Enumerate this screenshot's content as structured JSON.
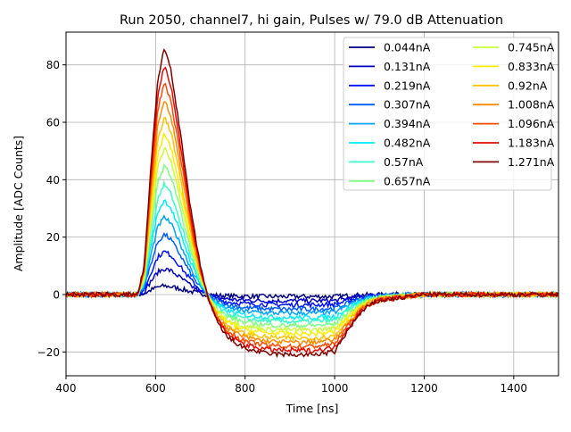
{
  "chart_data": {
    "type": "line",
    "title": "Run 2050, channel7, hi gain, Pulses w/ 79.0 dB Attenuation",
    "xlabel": "Time [ns]",
    "ylabel": "Amplitude [ADC Counts]",
    "xlim": [
      400,
      1500
    ],
    "ylim": [
      -28.3,
      91.4
    ],
    "xticks": [
      400,
      600,
      800,
      1000,
      1200,
      1400
    ],
    "xtick_labels": [
      "400",
      "600",
      "800",
      "1000",
      "1200",
      "1400"
    ],
    "yticks": [
      -20,
      0,
      20,
      40,
      60,
      80
    ],
    "ytick_labels": [
      "−20",
      "0",
      "20",
      "40",
      "60",
      "80"
    ],
    "grid": true,
    "legend_placement": "top-right",
    "legend_columns": 2,
    "colormap": "jet",
    "x": [
      400,
      560,
      575,
      590,
      605,
      620,
      635,
      650,
      665,
      680,
      700,
      720,
      740,
      760,
      800,
      850,
      900,
      950,
      1000,
      1020,
      1040,
      1060,
      1080,
      1100,
      1150,
      1200,
      1500
    ],
    "series": [
      {
        "name": "0.044nA",
        "color": "#000080",
        "values": [
          0,
          0,
          0.3,
          1.6,
          2.6,
          3,
          2.7,
          2.2,
          1.6,
          1.0,
          0.3,
          -0.1,
          -0.3,
          -0.5,
          -0.6,
          -0.7,
          -0.7,
          -0.7,
          -0.7,
          -0.5,
          -0.3,
          -0.2,
          -0.1,
          -0.1,
          0,
          0,
          0
        ]
      },
      {
        "name": "0.131nA",
        "color": "#0000c8",
        "values": [
          0,
          0,
          1.0,
          4.7,
          7.8,
          9,
          8.2,
          6.5,
          4.7,
          2.9,
          1.0,
          -0.3,
          -1.1,
          -1.6,
          -2.0,
          -2.2,
          -2.2,
          -2.2,
          -2.1,
          -1.6,
          -1.1,
          -0.6,
          -0.4,
          -0.2,
          -0.1,
          0,
          0
        ]
      },
      {
        "name": "0.219nA",
        "color": "#0012ff",
        "values": [
          0,
          0,
          1.7,
          7.8,
          13.1,
          15,
          13.6,
          10.8,
          7.8,
          4.9,
          1.7,
          -0.5,
          -1.7,
          -2.6,
          -3.2,
          -3.5,
          -3.6,
          -3.6,
          -3.4,
          -2.6,
          -1.7,
          -1.0,
          -0.6,
          -0.4,
          -0.2,
          0,
          0
        ]
      },
      {
        "name": "0.307nA",
        "color": "#005cff",
        "values": [
          0,
          0,
          2.4,
          11.0,
          18.3,
          21,
          19.0,
          15.1,
          11.0,
          6.8,
          2.4,
          -0.7,
          -2.4,
          -3.6,
          -4.6,
          -5.0,
          -5.1,
          -5.1,
          -4.8,
          -3.6,
          -2.4,
          -1.5,
          -0.9,
          -0.5,
          -0.3,
          0,
          0
        ]
      },
      {
        "name": "0.394nA",
        "color": "#00a4ff",
        "values": [
          0,
          0,
          3.1,
          14.1,
          23.5,
          27,
          24.5,
          19.5,
          14.1,
          8.8,
          3.1,
          -0.9,
          -3.1,
          -4.6,
          -5.9,
          -6.4,
          -6.5,
          -6.5,
          -6.2,
          -4.6,
          -3.1,
          -1.9,
          -1.1,
          -0.7,
          -0.3,
          0,
          0
        ]
      },
      {
        "name": "0.482nA",
        "color": "#00edff",
        "values": [
          0,
          0,
          3.8,
          17.3,
          28.8,
          33,
          29.9,
          23.8,
          17.3,
          10.8,
          3.8,
          -1.1,
          -3.8,
          -5.7,
          -7.2,
          -7.8,
          -8,
          -8,
          -7.6,
          -5.7,
          -3.8,
          -2.3,
          -1.4,
          -0.8,
          -0.4,
          0,
          0
        ]
      },
      {
        "name": "0.57nA",
        "color": "#36ffc8",
        "values": [
          0,
          0,
          4.5,
          20.1,
          33.6,
          38.5,
          34.9,
          27.8,
          20.1,
          12.6,
          4.5,
          -1.3,
          -4.5,
          -6.7,
          -8.5,
          -9.2,
          -9.4,
          -9.4,
          -8.9,
          -6.7,
          -4.5,
          -2.7,
          -1.6,
          -0.9,
          -0.5,
          0,
          0
        ]
      },
      {
        "name": "0.657nA",
        "color": "#80ff80",
        "values": [
          0,
          0,
          5.2,
          23.5,
          39.2,
          45,
          40.8,
          32.4,
          23.5,
          14.7,
          5.2,
          -1.5,
          -5.2,
          -7.7,
          -9.7,
          -10.6,
          -10.8,
          -10.8,
          -10.3,
          -7.7,
          -5.2,
          -3.1,
          -1.8,
          -1.1,
          -0.5,
          0,
          0
        ]
      },
      {
        "name": "0.745nA",
        "color": "#c8ff36",
        "values": [
          0,
          0,
          5.9,
          26.7,
          44.5,
          51,
          46.3,
          36.8,
          26.7,
          16.6,
          5.9,
          -1.7,
          -5.9,
          -8.7,
          -11.1,
          -12.1,
          -12.3,
          -12.3,
          -11.7,
          -8.7,
          -5.9,
          -3.6,
          -2.1,
          -1.2,
          -0.6,
          0,
          0
        ]
      },
      {
        "name": "0.833nA",
        "color": "#ffed00",
        "values": [
          0,
          0,
          6.5,
          29.3,
          48.8,
          56,
          50.8,
          40.4,
          29.3,
          18.3,
          6.5,
          -1.9,
          -6.6,
          -9.7,
          -12.3,
          -13.4,
          -13.7,
          -13.7,
          -13.0,
          -9.7,
          -6.6,
          -4.0,
          -2.3,
          -1.4,
          -0.7,
          0,
          0
        ]
      },
      {
        "name": "0.92nA",
        "color": "#ffc400",
        "values": [
          0,
          0,
          7.2,
          32.4,
          54.1,
          62,
          56.2,
          44.7,
          32.4,
          20.2,
          7.2,
          -2.1,
          -7.3,
          -10.8,
          -13.7,
          -14.9,
          -15.2,
          -15.2,
          -14.4,
          -10.8,
          -7.3,
          -4.4,
          -2.6,
          -1.5,
          -0.8,
          0,
          0
        ]
      },
      {
        "name": "1.008nA",
        "color": "#ff8c00",
        "values": [
          0,
          0,
          7.9,
          35.6,
          59.3,
          68,
          61.7,
          49.0,
          35.6,
          22.2,
          7.9,
          -2.3,
          -8.0,
          -11.8,
          -14.9,
          -16.3,
          -16.6,
          -16.6,
          -15.8,
          -11.8,
          -8.0,
          -4.8,
          -2.8,
          -1.7,
          -0.8,
          0,
          0
        ]
      },
      {
        "name": "1.096nA",
        "color": "#ff4a00",
        "values": [
          0,
          0,
          8.6,
          38.7,
          64.5,
          74,
          67.1,
          53.4,
          38.7,
          24.1,
          8.6,
          -2.5,
          -8.7,
          -12.9,
          -16.3,
          -17.7,
          -18.1,
          -18.1,
          -17.2,
          -12.9,
          -8.7,
          -5.2,
          -3.1,
          -1.8,
          -0.9,
          0,
          0
        ]
      },
      {
        "name": "1.183nA",
        "color": "#e80800",
        "values": [
          0,
          0,
          9.3,
          41.8,
          69.8,
          80,
          72.6,
          57.7,
          41.8,
          26.1,
          9.3,
          -2.7,
          -9.4,
          -13.8,
          -17.6,
          -19.1,
          -19.5,
          -19.5,
          -18.5,
          -13.8,
          -9.4,
          -5.7,
          -3.3,
          -2.0,
          -1.0,
          0,
          0
        ]
      },
      {
        "name": "1.271nA",
        "color": "#800000",
        "values": [
          0,
          0,
          10,
          45,
          75,
          86,
          78,
          62,
          45,
          28,
          10,
          -2.9,
          -10.1,
          -14.9,
          -18.9,
          -20.6,
          -21,
          -21,
          -20,
          -14.9,
          -10.1,
          -6.1,
          -3.6,
          -2.1,
          -1.1,
          0,
          0
        ]
      }
    ]
  }
}
